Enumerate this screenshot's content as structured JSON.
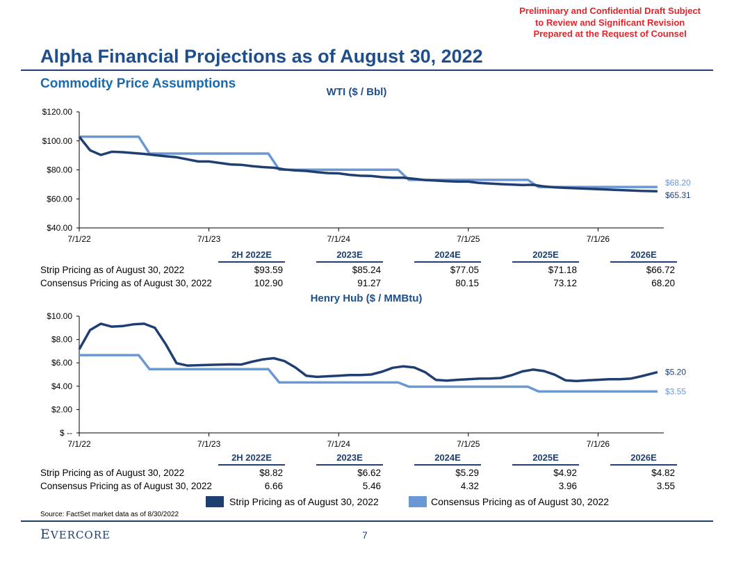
{
  "header": {
    "confidential_lines": [
      "Preliminary and Confidential Draft Subject",
      "to Review and Significant Revision",
      "Prepared at the Request of Counsel"
    ],
    "title": "Alpha Financial Projections as of August 30, 2022",
    "subtitle": "Commodity Price Assumptions"
  },
  "colors": {
    "strip": "#1f3f73",
    "consensus": "#6a98d4",
    "title": "#1f4e8c",
    "confidential": "#e3242b"
  },
  "chart_data": [
    {
      "type": "line",
      "title": "WTI ($ / Bbl)",
      "x_unit": "months since 7/1/22",
      "x_ticks": [
        {
          "m": 0,
          "label": "7/1/22"
        },
        {
          "m": 12,
          "label": "7/1/23"
        },
        {
          "m": 24,
          "label": "7/1/24"
        },
        {
          "m": 36,
          "label": "7/1/25"
        },
        {
          "m": 48,
          "label": "7/1/26"
        }
      ],
      "y_ticks": [
        {
          "v": 120,
          "label": "$120.00"
        },
        {
          "v": 100,
          "label": "$100.00"
        },
        {
          "v": 80,
          "label": "$80.00"
        },
        {
          "v": 60,
          "label": "$60.00"
        },
        {
          "v": 40,
          "label": "$40.00"
        }
      ],
      "ylim": [
        40,
        120
      ],
      "series": [
        {
          "name": "Strip Pricing as of August 30, 2022",
          "end_label": "$65.31",
          "x": [
            0,
            1,
            2,
            3,
            4,
            5,
            6,
            7,
            8,
            9,
            10,
            11,
            12,
            13,
            14,
            15,
            16,
            17,
            18,
            19,
            20,
            21,
            22,
            23,
            24,
            25,
            26,
            27,
            28,
            29,
            30,
            31,
            32,
            33,
            34,
            35,
            36,
            37,
            38,
            39,
            40,
            41,
            42,
            43,
            44,
            45,
            46,
            47,
            48,
            49,
            50,
            51,
            52,
            53.5
          ],
          "y": [
            102.9,
            93.5,
            90.3,
            92.5,
            92.2,
            91.6,
            91.0,
            90.2,
            89.4,
            88.7,
            87.3,
            85.8,
            85.8,
            84.8,
            83.8,
            83.5,
            82.6,
            81.9,
            81.5,
            80.3,
            79.6,
            79.3,
            78.4,
            77.8,
            77.6,
            76.6,
            76.0,
            75.8,
            75.0,
            74.6,
            74.6,
            73.8,
            73.0,
            72.6,
            72.2,
            71.9,
            71.9,
            71.0,
            70.6,
            70.2,
            69.9,
            69.6,
            69.7,
            68.6,
            68.0,
            67.6,
            67.3,
            67.0,
            66.7,
            66.4,
            66.1,
            65.8,
            65.5,
            65.31
          ]
        },
        {
          "name": "Consensus Pricing as of August 30, 2022",
          "end_label": "$68.20",
          "x": [
            0,
            5.5,
            6.5,
            17.5,
            18.5,
            29.5,
            30.5,
            41.5,
            42.5,
            53.5
          ],
          "y": [
            102.9,
            102.9,
            91.27,
            91.27,
            80.15,
            80.15,
            73.12,
            73.12,
            68.2,
            68.2
          ]
        }
      ],
      "table": {
        "headers": [
          "2H 2022E",
          "2023E",
          "2024E",
          "2025E",
          "2026E"
        ],
        "rows": [
          {
            "label": "Strip Pricing as of August 30, 2022",
            "values": [
              "$93.59",
              "$85.24",
              "$77.05",
              "$71.18",
              "$66.72"
            ]
          },
          {
            "label": "Consensus Pricing as of August 30, 2022",
            "values": [
              "102.90",
              "91.27",
              "80.15",
              "73.12",
              "68.20"
            ]
          }
        ]
      }
    },
    {
      "type": "line",
      "title": "Henry Hub ($ / MMBtu)",
      "x_unit": "months since 7/1/22",
      "x_ticks": [
        {
          "m": 0,
          "label": "7/1/22"
        },
        {
          "m": 12,
          "label": "7/1/23"
        },
        {
          "m": 24,
          "label": "7/1/24"
        },
        {
          "m": 36,
          "label": "7/1/25"
        },
        {
          "m": 48,
          "label": "7/1/26"
        }
      ],
      "y_ticks": [
        {
          "v": 10,
          "label": "$10.00"
        },
        {
          "v": 8,
          "label": "$8.00"
        },
        {
          "v": 6,
          "label": "$6.00"
        },
        {
          "v": 4,
          "label": "$4.00"
        },
        {
          "v": 2,
          "label": "$2.00"
        },
        {
          "v": 0,
          "label": "$ --"
        }
      ],
      "ylim": [
        0,
        10
      ],
      "series": [
        {
          "name": "Strip Pricing as of August 30, 2022",
          "end_label": "$5.20",
          "x": [
            0,
            1,
            2,
            3,
            4,
            5,
            6,
            7,
            8,
            9,
            10,
            11,
            12,
            13,
            14,
            15,
            16,
            17,
            18,
            19,
            20,
            21,
            22,
            23,
            24,
            25,
            26,
            27,
            28,
            29,
            30,
            31,
            32,
            33,
            34,
            35,
            36,
            37,
            38,
            39,
            40,
            41,
            42,
            43,
            44,
            45,
            46,
            47,
            48,
            49,
            50,
            51,
            52,
            53.5
          ],
          "y": [
            7.16,
            8.81,
            9.35,
            9.1,
            9.15,
            9.3,
            9.35,
            9.0,
            7.6,
            5.97,
            5.77,
            5.8,
            5.83,
            5.85,
            5.87,
            5.86,
            6.1,
            6.3,
            6.4,
            6.15,
            5.6,
            4.9,
            4.8,
            4.85,
            4.9,
            4.95,
            4.95,
            5.0,
            5.24,
            5.58,
            5.7,
            5.6,
            5.2,
            4.54,
            4.48,
            4.55,
            4.6,
            4.65,
            4.66,
            4.7,
            4.94,
            5.27,
            5.42,
            5.3,
            4.98,
            4.5,
            4.44,
            4.5,
            4.55,
            4.6,
            4.6,
            4.65,
            4.85,
            5.2
          ]
        },
        {
          "name": "Consensus Pricing as of August 30, 2022",
          "end_label": "$3.55",
          "x": [
            0,
            5.5,
            6.5,
            17.5,
            18.5,
            29.5,
            30.5,
            41.5,
            42.5,
            53.5
          ],
          "y": [
            6.66,
            6.66,
            5.46,
            5.46,
            4.32,
            4.32,
            3.96,
            3.96,
            3.55,
            3.55
          ]
        }
      ],
      "table": {
        "headers": [
          "2H 2022E",
          "2023E",
          "2024E",
          "2025E",
          "2026E"
        ],
        "rows": [
          {
            "label": "Strip Pricing as of August 30, 2022",
            "values": [
              "$8.82",
              "$6.62",
              "$5.29",
              "$4.92",
              "$4.82"
            ]
          },
          {
            "label": "Consensus Pricing as of August 30, 2022",
            "values": [
              "6.66",
              "5.46",
              "4.32",
              "3.96",
              "3.55"
            ]
          }
        ]
      }
    }
  ],
  "legend": [
    "Strip Pricing as of August 30, 2022",
    "Consensus Pricing as of August 30, 2022"
  ],
  "footer": {
    "source": "Source: FactSet market data as of 8/30/2022",
    "logo": "Evercore",
    "page": "7"
  }
}
